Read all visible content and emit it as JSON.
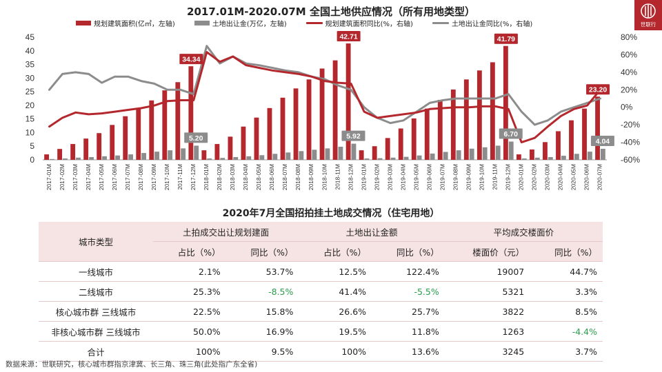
{
  "title": "2017.01M-2020.07M 全国土地供应情况（所有用地类型）",
  "logo": {
    "text": "世联行"
  },
  "legend": [
    {
      "label": "规划建筑面积(亿㎡，左轴)",
      "color": "#b4282d",
      "kind": "bar"
    },
    {
      "label": "土地出让金(万亿，左轴)",
      "color": "#8c8c8c",
      "kind": "bar"
    },
    {
      "label": "规划建筑面积同比(%，右轴)",
      "color": "#b4282d",
      "kind": "line"
    },
    {
      "label": "土地出让金同比(%，右轴)",
      "color": "#8c8c8c",
      "kind": "line"
    }
  ],
  "chart_data": {
    "type": "bar",
    "categories": [
      "2017-01M",
      "2017-02M",
      "2017-03M",
      "2017-04M",
      "2017-05M",
      "2017-06M",
      "2017-07M",
      "2017-08M",
      "2017-09M",
      "2017-10M",
      "2017-11M",
      "2017-12M",
      "2018-01M",
      "2018-02M",
      "2018-03M",
      "2018-04M",
      "2018-05M",
      "2018-06M",
      "2018-07M",
      "2018-08M",
      "2018-09M",
      "2018-10M",
      "2018-11M",
      "2018-12M",
      "2019-01M",
      "2019-02M",
      "2019-03M",
      "2019-04M",
      "2019-05M",
      "2019-06M",
      "2019-07M",
      "2019-08M",
      "2019-09M",
      "2019-10M",
      "2019-11M",
      "2019-12M",
      "2020-01M",
      "2020-02M",
      "2020-03M",
      "2020-04M",
      "2020-05M",
      "2020-06M",
      "2020-07M"
    ],
    "series": [
      {
        "name": "规划建筑面积(亿㎡，左轴)",
        "axis": "left",
        "type": "bar",
        "color": "#b4282d",
        "values": [
          2.0,
          4.0,
          5.8,
          7.8,
          9.8,
          12.8,
          16.0,
          19.0,
          21.8,
          25.5,
          28.5,
          34.34,
          3.5,
          5.8,
          8.5,
          12.2,
          15.5,
          19.0,
          22.8,
          26.2,
          29.5,
          33.5,
          36.5,
          42.71,
          3.5,
          5.0,
          8.0,
          11.5,
          15.2,
          18.8,
          22.0,
          25.8,
          29.5,
          32.8,
          35.8,
          41.79,
          2.0,
          3.8,
          6.5,
          10.5,
          14.5,
          18.8,
          23.2
        ]
      },
      {
        "name": "土地出让金(万亿，左轴)",
        "axis": "left",
        "type": "bar",
        "color": "#8c8c8c",
        "values": [
          0.3,
          0.5,
          0.8,
          1.0,
          1.3,
          1.6,
          2.0,
          2.5,
          3.0,
          3.5,
          4.2,
          5.2,
          0.5,
          0.7,
          1.0,
          1.3,
          1.7,
          2.2,
          2.7,
          3.2,
          3.7,
          4.2,
          4.8,
          5.92,
          0.5,
          0.6,
          0.8,
          1.1,
          1.6,
          2.3,
          2.9,
          3.5,
          4.1,
          4.6,
          5.2,
          6.7,
          0.5,
          0.8,
          1.0,
          1.5,
          2.2,
          3.0,
          4.04
        ]
      },
      {
        "name": "规划建筑面积同比(%，右轴)",
        "axis": "right",
        "type": "line",
        "color": "#b4282d",
        "values": [
          -22,
          -12,
          -6,
          -8,
          -7,
          -5,
          -3,
          -1,
          2,
          7,
          8,
          8,
          63,
          52,
          58,
          48,
          45,
          42,
          40,
          38,
          35,
          30,
          28,
          27,
          -5,
          -12,
          -10,
          -8,
          -6,
          -2,
          -1,
          0,
          0,
          1,
          1,
          -2,
          -40,
          -35,
          -22,
          -10,
          -2,
          2,
          20
        ]
      },
      {
        "name": "土地出让金同比(%，右轴)",
        "axis": "right",
        "type": "line",
        "color": "#8c8c8c",
        "values": [
          20,
          38,
          40,
          38,
          28,
          35,
          35,
          30,
          27,
          20,
          20,
          15,
          70,
          50,
          58,
          50,
          48,
          45,
          42,
          40,
          35,
          32,
          25,
          20,
          0,
          -12,
          -18,
          -15,
          -5,
          5,
          8,
          10,
          10,
          10,
          10,
          15,
          -5,
          -20,
          -15,
          -5,
          0,
          5,
          10
        ]
      }
    ],
    "data_labels": [
      {
        "series": 0,
        "index": 11,
        "text": "34.34"
      },
      {
        "series": 0,
        "index": 23,
        "text": "42.71"
      },
      {
        "series": 0,
        "index": 35,
        "text": "41.79"
      },
      {
        "series": 0,
        "index": 42,
        "text": "23.20"
      },
      {
        "series": 1,
        "index": 11,
        "text": "5.20"
      },
      {
        "series": 1,
        "index": 23,
        "text": "5.92"
      },
      {
        "series": 1,
        "index": 35,
        "text": "6.70"
      },
      {
        "series": 1,
        "index": 42,
        "text": "4.04"
      }
    ],
    "ylim_left": [
      0,
      45
    ],
    "yticks_left": [
      "0",
      "5",
      "10",
      "15",
      "20",
      "25",
      "30",
      "35",
      "40",
      "45"
    ],
    "ylim_right": [
      -60,
      80
    ],
    "yticks_right": [
      "-60%",
      "-40%",
      "-20%",
      "0%",
      "20%",
      "40%",
      "60%",
      "80%"
    ],
    "grid": false,
    "legend_position": "top"
  },
  "table": {
    "title": "2020年7月全国招拍挂土地成交情况（住宅用地）",
    "col_city": "城市类型",
    "groups": [
      "土拍成交出让规划建面",
      "土地出让金额",
      "平均成交楼面价"
    ],
    "subheaders": [
      "占比（%）",
      "同比（%）",
      "占比（%）",
      "同比（%）",
      "楼面价（元）",
      "同比（%）"
    ],
    "rows": [
      {
        "city": "一线城市",
        "cells": [
          "2.1%",
          "53.7%",
          "12.5%",
          "122.4%",
          "19007",
          "44.7%"
        ],
        "neg": [
          false,
          false,
          false,
          false,
          false,
          false
        ]
      },
      {
        "city": "二线城市",
        "cells": [
          "25.3%",
          "-8.5%",
          "41.4%",
          "-5.5%",
          "5321",
          "3.3%"
        ],
        "neg": [
          false,
          true,
          false,
          true,
          false,
          false
        ]
      },
      {
        "city": "核心城市群 三线城市",
        "cells": [
          "22.5%",
          "15.8%",
          "26.6%",
          "25.7%",
          "3822",
          "8.5%"
        ],
        "neg": [
          false,
          false,
          false,
          false,
          false,
          false
        ]
      },
      {
        "city": "非核心城市群 三线城市",
        "cells": [
          "50.0%",
          "16.9%",
          "19.5%",
          "11.8%",
          "1263",
          "-4.4%"
        ],
        "neg": [
          false,
          false,
          false,
          false,
          false,
          true
        ]
      }
    ],
    "total": {
      "city": "合计",
      "cells": [
        "100%",
        "9.5%",
        "100%",
        "13.6%",
        "3245",
        "3.7%"
      ]
    }
  },
  "source": "数据来源：世联研究，核心城市群指京津冀、长三角、珠三角(此处指广东全省)"
}
